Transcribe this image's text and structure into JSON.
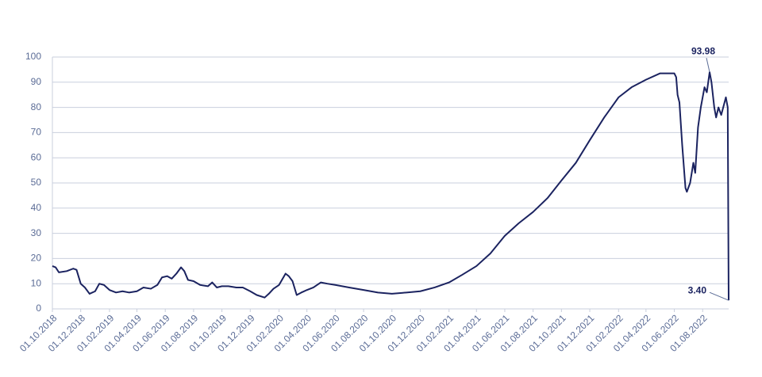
{
  "chart_data": {
    "type": "line",
    "x": [
      "01.10.2018",
      "08.10.2018",
      "15.10.2018",
      "01.11.2018",
      "15.11.2018",
      "22.11.2018",
      "01.12.2018",
      "10.12.2018",
      "20.12.2018",
      "01.01.2019",
      "10.01.2019",
      "20.01.2019",
      "01.02.2019",
      "15.02.2019",
      "01.03.2019",
      "15.03.2019",
      "01.04.2019",
      "15.04.2019",
      "01.05.2019",
      "15.05.2019",
      "25.05.2019",
      "05.06.2019",
      "15.06.2019",
      "25.06.2019",
      "05.07.2019",
      "12.07.2019",
      "20.07.2019",
      "01.08.2019",
      "15.08.2019",
      "01.09.2019",
      "10.09.2019",
      "20.09.2019",
      "01.10.2019",
      "15.10.2019",
      "01.11.2019",
      "15.11.2019",
      "01.12.2019",
      "15.12.2019",
      "01.01.2020",
      "10.01.2020",
      "20.01.2020",
      "01.02.2020",
      "15.02.2020",
      "22.02.2020",
      "01.03.2020",
      "10.03.2020",
      "20.03.2020",
      "01.04.2020",
      "15.04.2020",
      "01.05.2020",
      "15.05.2020",
      "01.06.2020",
      "01.07.2020",
      "01.08.2020",
      "01.09.2020",
      "01.10.2020",
      "01.11.2020",
      "01.12.2020",
      "01.01.2021",
      "01.02.2021",
      "01.03.2021",
      "01.04.2021",
      "01.05.2021",
      "01.06.2021",
      "01.07.2021",
      "01.08.2021",
      "01.09.2021",
      "01.10.2021",
      "01.11.2021",
      "01.12.2021",
      "01.01.2022",
      "01.02.2022",
      "01.03.2022",
      "01.04.2022",
      "01.05.2022",
      "01.06.2022",
      "05.06.2022",
      "08.06.2022",
      "12.06.2022",
      "18.06.2022",
      "25.06.2022",
      "28.06.2022",
      "05.07.2022",
      "12.07.2022",
      "16.07.2022",
      "22.07.2022",
      "28.07.2022",
      "01.08.2022",
      "05.08.2022",
      "10.08.2022",
      "16.08.2022",
      "20.08.2022",
      "26.08.2022",
      "30.08.2022",
      "04.09.2022",
      "10.09.2022",
      "20.09.2022",
      "24.09.2022",
      "26.09.2022"
    ],
    "series": [
      {
        "color": "#1b2360",
        "values": [
          17,
          16.5,
          14.5,
          15,
          16,
          15.5,
          10,
          8.5,
          6,
          7,
          10,
          9.5,
          7.5,
          6.5,
          7,
          6.5,
          7,
          8.5,
          8,
          9.5,
          12.5,
          13,
          12,
          14,
          16.5,
          15,
          11.5,
          11,
          9.5,
          9,
          10.5,
          8.5,
          9,
          9,
          8.5,
          8.5,
          7,
          5.5,
          4.5,
          6,
          8,
          9.5,
          14,
          13,
          11,
          5.5,
          6.5,
          7.5,
          8.5,
          10.5,
          10,
          9.5,
          8.5,
          7.5,
          6.5,
          6,
          6.5,
          7,
          8.5,
          10.5,
          13.5,
          17,
          22,
          29,
          34,
          38.5,
          44,
          51,
          58,
          67,
          76,
          84,
          88,
          91,
          93.5,
          93.5,
          92,
          85,
          82,
          65,
          48,
          46.5,
          50,
          58,
          54,
          72,
          80,
          84,
          88,
          86,
          93.98,
          90,
          80,
          76,
          80,
          77,
          84,
          80,
          3.4
        ]
      }
    ],
    "annotations": [
      {
        "x": "16.08.2022",
        "value": 93.98,
        "label": "93.98"
      },
      {
        "x": "26.09.2022",
        "value": 3.4,
        "label": "3.40"
      }
    ],
    "xlim": [
      "01.10.2018",
      "26.09.2022"
    ],
    "xticks": [
      "01.10.2018",
      "01.12.2018",
      "01.02.2019",
      "01.04.2019",
      "01.06.2019",
      "01.08.2019",
      "01.10.2019",
      "01.12.2019",
      "01.02.2020",
      "01.04.2020",
      "01.06.2020",
      "01.08.2020",
      "01.10.2020",
      "01.12.2020",
      "01.02.2021",
      "01.04.2021",
      "01.06.2021",
      "01.08.2021",
      "01.10.2021",
      "01.12.2021",
      "01.02.2022",
      "01.04.2022",
      "01.06.2022",
      "01.08.2022"
    ],
    "ylim": [
      0,
      100
    ],
    "yticks": [
      0,
      10,
      20,
      30,
      40,
      50,
      60,
      70,
      80,
      90,
      100
    ],
    "grid": true
  }
}
